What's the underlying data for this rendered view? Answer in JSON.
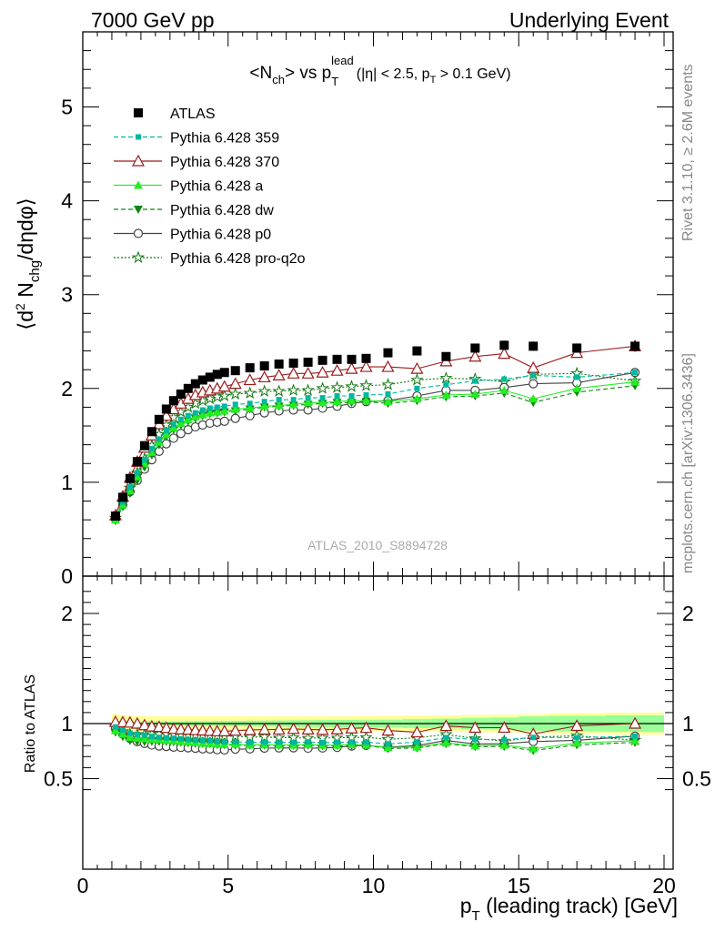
{
  "header": {
    "left": "7000 GeV pp",
    "right": "Underlying Event",
    "rivet": "Rivet 3.1.10, ≥ 2.6M events",
    "mcplots": "mcplots.cern.ch [arXiv:1306.3436]"
  },
  "title": {
    "main_prefix": "<N",
    "main_sub1": "ch",
    "main_mid": "> vs p",
    "main_sub2": "T",
    "main_sup": "lead",
    "cuts": "(|η| < 2.5, p",
    "cuts_sub": "T",
    "cuts_end": " > 0.1 GeV)"
  },
  "watermark": "ATLAS_2010_S8894728",
  "colors": {
    "ATLAS": "#000000",
    "p359": "#00b8a0",
    "p370": "#9b1b1b",
    "pa": "#22ee22",
    "pdw": "#118811",
    "pp0": "#444444",
    "pq2o": "#117711",
    "band_yellow": "#ffff99",
    "band_green": "#99ff99"
  },
  "chart_data": [
    {
      "type": "scatter",
      "panel": "main",
      "title": "<Nch> vs pT lead (|η| < 2.5, pT > 0.1 GeV)",
      "xlabel": "pT (leading track) [GeV]",
      "ylabel": "⟨d² Nchg/dηdφ⟩",
      "xlim": [
        0,
        20
      ],
      "ylim": [
        0,
        5.8
      ],
      "yticks": [
        "0",
        "1",
        "2",
        "3",
        "4",
        "5"
      ],
      "legend_position": "top-left",
      "series": [
        {
          "name": "ATLAS",
          "x": [
            1.125,
            1.375,
            1.625,
            1.875,
            2.125,
            2.375,
            2.625,
            2.875,
            3.125,
            3.375,
            3.625,
            3.875,
            4.125,
            4.375,
            4.625,
            4.875,
            5.25,
            5.75,
            6.25,
            6.75,
            7.25,
            7.75,
            8.25,
            8.75,
            9.25,
            9.75,
            10.5,
            11.5,
            12.5,
            13.5,
            14.5,
            15.5,
            17,
            19
          ],
          "y": [
            0.64,
            0.84,
            1.04,
            1.22,
            1.39,
            1.54,
            1.67,
            1.78,
            1.87,
            1.94,
            2.0,
            2.05,
            2.09,
            2.12,
            2.15,
            2.17,
            2.19,
            2.22,
            2.24,
            2.26,
            2.27,
            2.28,
            2.3,
            2.31,
            2.31,
            2.32,
            2.38,
            2.4,
            2.34,
            2.43,
            2.46,
            2.45,
            2.43,
            2.45
          ]
        },
        {
          "name": "Pythia 6.428 359",
          "x": [
            1.125,
            1.375,
            1.625,
            1.875,
            2.125,
            2.375,
            2.625,
            2.875,
            3.125,
            3.375,
            3.625,
            3.875,
            4.125,
            4.375,
            4.625,
            4.875,
            5.25,
            5.75,
            6.25,
            6.75,
            7.25,
            7.75,
            8.25,
            8.75,
            9.25,
            9.75,
            10.5,
            11.5,
            12.5,
            13.5,
            14.5,
            15.5,
            17,
            19
          ],
          "y": [
            0.62,
            0.79,
            0.95,
            1.1,
            1.24,
            1.36,
            1.46,
            1.55,
            1.62,
            1.67,
            1.71,
            1.74,
            1.77,
            1.79,
            1.8,
            1.81,
            1.83,
            1.84,
            1.86,
            1.88,
            1.88,
            1.9,
            1.9,
            1.92,
            1.92,
            1.93,
            1.94,
            2.0,
            2.04,
            2.08,
            2.1,
            2.14,
            2.12,
            2.17
          ]
        },
        {
          "name": "Pythia 6.428 370",
          "x": [
            1.125,
            1.375,
            1.625,
            1.875,
            2.125,
            2.375,
            2.625,
            2.875,
            3.125,
            3.375,
            3.625,
            3.875,
            4.125,
            4.375,
            4.625,
            4.875,
            5.25,
            5.75,
            6.25,
            6.75,
            7.25,
            7.75,
            8.25,
            8.75,
            9.25,
            9.75,
            10.5,
            11.5,
            12.5,
            13.5,
            14.5,
            15.5,
            17,
            19
          ],
          "y": [
            0.65,
            0.85,
            1.05,
            1.22,
            1.37,
            1.5,
            1.62,
            1.71,
            1.78,
            1.84,
            1.89,
            1.93,
            1.96,
            1.98,
            2.0,
            2.02,
            2.05,
            2.09,
            2.12,
            2.14,
            2.16,
            2.16,
            2.17,
            2.19,
            2.21,
            2.23,
            2.23,
            2.21,
            2.29,
            2.34,
            2.37,
            2.22,
            2.38,
            2.45
          ]
        },
        {
          "name": "Pythia 6.428 a",
          "x": [
            1.125,
            1.375,
            1.625,
            1.875,
            2.125,
            2.375,
            2.625,
            2.875,
            3.125,
            3.375,
            3.625,
            3.875,
            4.125,
            4.375,
            4.625,
            4.875,
            5.25,
            5.75,
            6.25,
            6.75,
            7.25,
            7.75,
            8.25,
            8.75,
            9.25,
            9.75,
            10.5,
            11.5,
            12.5,
            13.5,
            14.5,
            15.5,
            17,
            19
          ],
          "y": [
            0.6,
            0.76,
            0.91,
            1.06,
            1.2,
            1.32,
            1.43,
            1.51,
            1.58,
            1.63,
            1.67,
            1.7,
            1.72,
            1.74,
            1.75,
            1.76,
            1.78,
            1.79,
            1.81,
            1.82,
            1.83,
            1.85,
            1.85,
            1.86,
            1.87,
            1.87,
            1.86,
            1.89,
            1.93,
            1.94,
            1.98,
            1.89,
            2.0,
            2.07
          ]
        },
        {
          "name": "Pythia 6.428 dw",
          "x": [
            1.125,
            1.375,
            1.625,
            1.875,
            2.125,
            2.375,
            2.625,
            2.875,
            3.125,
            3.375,
            3.625,
            3.875,
            4.125,
            4.375,
            4.625,
            4.875,
            5.25,
            5.75,
            6.25,
            6.75,
            7.25,
            7.75,
            8.25,
            8.75,
            9.25,
            9.75,
            10.5,
            11.5,
            12.5,
            13.5,
            14.5,
            15.5,
            17,
            19
          ],
          "y": [
            0.59,
            0.74,
            0.88,
            1.02,
            1.16,
            1.29,
            1.4,
            1.49,
            1.56,
            1.61,
            1.65,
            1.68,
            1.71,
            1.73,
            1.74,
            1.75,
            1.76,
            1.78,
            1.8,
            1.81,
            1.82,
            1.83,
            1.84,
            1.85,
            1.85,
            1.86,
            1.84,
            1.87,
            1.91,
            1.92,
            1.95,
            1.85,
            1.96,
            2.03
          ]
        },
        {
          "name": "Pythia 6.428 p0",
          "x": [
            1.125,
            1.375,
            1.625,
            1.875,
            2.125,
            2.375,
            2.625,
            2.875,
            3.125,
            3.375,
            3.625,
            3.875,
            4.125,
            4.375,
            4.625,
            4.875,
            5.25,
            5.75,
            6.25,
            6.75,
            7.25,
            7.75,
            8.25,
            8.75,
            9.25,
            9.75,
            10.5,
            11.5,
            12.5,
            13.5,
            14.5,
            15.5,
            17,
            19
          ],
          "y": [
            0.61,
            0.76,
            0.9,
            1.02,
            1.14,
            1.24,
            1.33,
            1.41,
            1.47,
            1.52,
            1.56,
            1.59,
            1.61,
            1.63,
            1.64,
            1.65,
            1.68,
            1.71,
            1.74,
            1.76,
            1.77,
            1.77,
            1.79,
            1.81,
            1.84,
            1.86,
            1.87,
            1.92,
            1.98,
            1.98,
            2.01,
            2.05,
            2.06,
            2.17
          ]
        },
        {
          "name": "Pythia 6.428 pro-q2o",
          "x": [
            1.125,
            1.375,
            1.625,
            1.875,
            2.125,
            2.375,
            2.625,
            2.875,
            3.125,
            3.375,
            3.625,
            3.875,
            4.125,
            4.375,
            4.625,
            4.875,
            5.25,
            5.75,
            6.25,
            6.75,
            7.25,
            7.75,
            8.25,
            8.75,
            9.25,
            9.75,
            10.5,
            11.5,
            12.5,
            13.5,
            14.5,
            15.5,
            17,
            19
          ],
          "y": [
            0.62,
            0.78,
            0.94,
            1.1,
            1.25,
            1.39,
            1.51,
            1.61,
            1.69,
            1.75,
            1.8,
            1.84,
            1.87,
            1.89,
            1.91,
            1.92,
            1.94,
            1.95,
            1.97,
            1.97,
            1.98,
            1.98,
            2.0,
            2.01,
            2.02,
            2.03,
            2.04,
            2.09,
            2.11,
            2.1,
            2.07,
            2.15,
            2.16,
            2.08
          ]
        }
      ],
      "error_bars": {
        "ATLAS": [
          0.02,
          0.02,
          0.02,
          0.02,
          0.02,
          0.02,
          0.02,
          0.02,
          0.02,
          0.02,
          0.02,
          0.02,
          0.02,
          0.02,
          0.02,
          0.02,
          0.02,
          0.02,
          0.02,
          0.02,
          0.02,
          0.02,
          0.02,
          0.02,
          0.03,
          0.03,
          0.03,
          0.03,
          0.04,
          0.04,
          0.05,
          0.05,
          0.05,
          0.06
        ],
        "mc_tail": 0.08
      }
    },
    {
      "type": "scatter",
      "panel": "ratio",
      "ylabel": "Ratio to ATLAS",
      "xlabel": "pT (leading track) [GeV]",
      "xlim": [
        0,
        20
      ],
      "ylim": [
        0.35,
        2.3
      ],
      "yticks": [
        "0.5",
        "1",
        "2"
      ],
      "xticks": [
        "0",
        "5",
        "10",
        "15",
        "20"
      ],
      "bands": {
        "x_edges": [
          1.0,
          1.25,
          1.5,
          1.75,
          2.0,
          2.25,
          2.5,
          2.75,
          3.0,
          3.25,
          3.5,
          3.75,
          4.0,
          4.25,
          4.5,
          4.75,
          5.0,
          5.5,
          6.0,
          6.5,
          7.0,
          7.5,
          8.0,
          8.5,
          9.0,
          9.5,
          10.0,
          11.0,
          12.0,
          13.0,
          14.0,
          15.0,
          16.0,
          18.0,
          20.0
        ],
        "yellow_halfwidth": [
          0.085,
          0.075,
          0.07,
          0.07,
          0.068,
          0.068,
          0.067,
          0.067,
          0.066,
          0.066,
          0.066,
          0.066,
          0.066,
          0.066,
          0.066,
          0.066,
          0.066,
          0.066,
          0.066,
          0.066,
          0.067,
          0.067,
          0.067,
          0.068,
          0.068,
          0.069,
          0.07,
          0.072,
          0.075,
          0.078,
          0.08,
          0.085,
          0.095,
          0.1
        ],
        "green_halfwidth": [
          0.02,
          0.02,
          0.02,
          0.02,
          0.02,
          0.02,
          0.02,
          0.02,
          0.02,
          0.02,
          0.022,
          0.022,
          0.022,
          0.022,
          0.024,
          0.024,
          0.025,
          0.026,
          0.027,
          0.028,
          0.03,
          0.03,
          0.032,
          0.033,
          0.034,
          0.035,
          0.036,
          0.04,
          0.045,
          0.05,
          0.055,
          0.065,
          0.07,
          0.075
        ]
      }
    }
  ]
}
